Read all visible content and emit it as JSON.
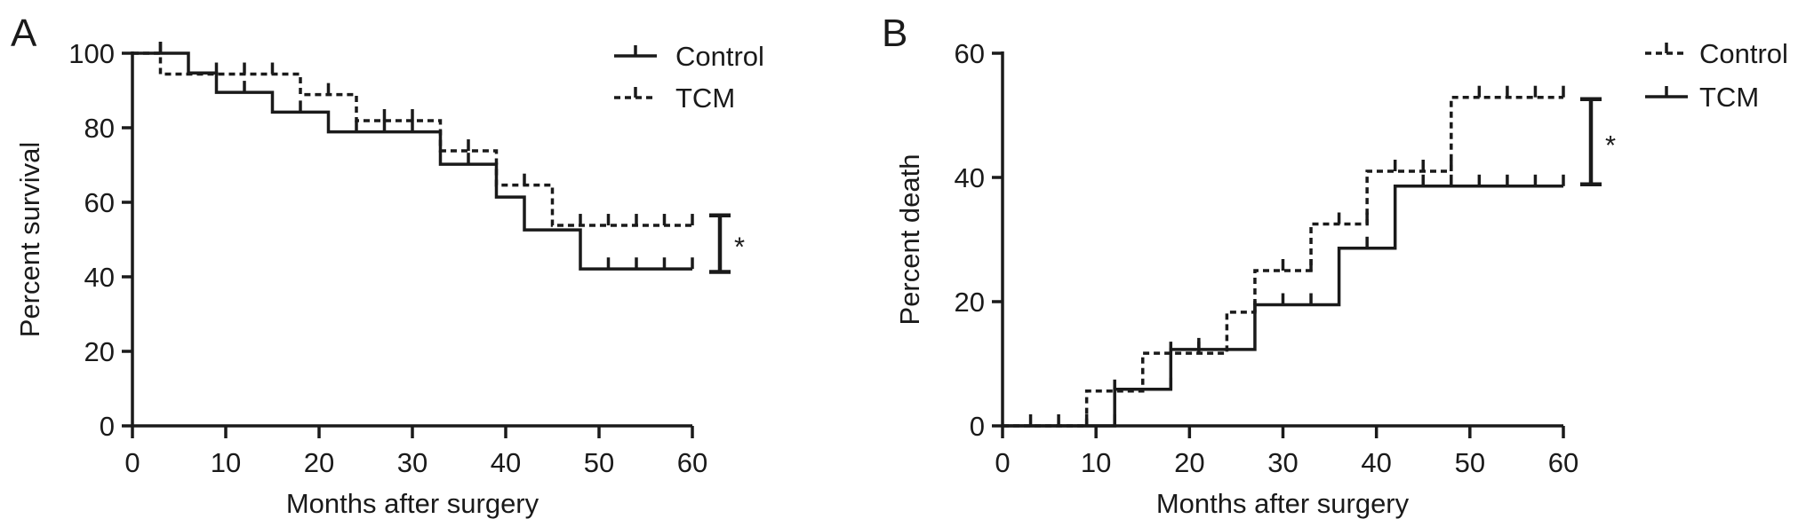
{
  "chart_data": [
    {
      "type": "line",
      "subtype": "kaplan-meier-step",
      "panel_label": "A",
      "title": "",
      "xlabel": "Months after surgery",
      "ylabel": "Percent survival",
      "xlim": [
        0,
        60
      ],
      "ylim": [
        0,
        100
      ],
      "xticks": [
        "0",
        "10",
        "20",
        "30",
        "40",
        "50",
        "60"
      ],
      "yticks": [
        "0",
        "20",
        "40",
        "60",
        "80",
        "100"
      ],
      "legend_position": "top-right",
      "series": [
        {
          "name": "Control",
          "style": "solid",
          "steps": [
            [
              0,
              100
            ],
            [
              6,
              94.7
            ],
            [
              9,
              89.5
            ],
            [
              15,
              84.2
            ],
            [
              21,
              78.9
            ],
            [
              33,
              70.2
            ],
            [
              39,
              61.4
            ],
            [
              42,
              52.6
            ],
            [
              48,
              42.1
            ],
            [
              60,
              42.1
            ]
          ],
          "censored": [
            3,
            12,
            18,
            24,
            27,
            30,
            36,
            51,
            54,
            57,
            60
          ]
        },
        {
          "name": "TCM",
          "style": "dashed",
          "steps": [
            [
              0,
              100
            ],
            [
              3,
              94.4
            ],
            [
              18,
              88.9
            ],
            [
              24,
              81.9
            ],
            [
              33,
              73.8
            ],
            [
              39,
              64.6
            ],
            [
              45,
              53.8
            ],
            [
              60,
              53.8
            ]
          ],
          "censored": [
            3,
            9,
            12,
            15,
            21,
            27,
            30,
            36,
            42,
            48,
            51,
            54,
            57,
            60
          ]
        }
      ],
      "significance": {
        "label": "*",
        "range": [
          41.3,
          56.5
        ]
      }
    },
    {
      "type": "line",
      "subtype": "cumulative-incidence-step",
      "panel_label": "B",
      "title": "",
      "xlabel": "Months after surgery",
      "ylabel": "Percent death",
      "xlim": [
        0,
        60
      ],
      "ylim": [
        0,
        60
      ],
      "xticks": [
        "0",
        "10",
        "20",
        "30",
        "40",
        "50",
        "60"
      ],
      "yticks": [
        "0",
        "20",
        "40",
        "60"
      ],
      "legend_position": "top-right",
      "series": [
        {
          "name": "Control",
          "style": "dashed",
          "steps": [
            [
              0,
              0
            ],
            [
              9,
              5.6
            ],
            [
              15,
              11.7
            ],
            [
              24,
              18.3
            ],
            [
              27,
              25
            ],
            [
              33,
              32.5
            ],
            [
              39,
              41
            ],
            [
              48,
              52.9
            ],
            [
              60,
              52.9
            ]
          ],
          "censored": [
            9,
            12,
            18,
            21,
            27,
            30,
            33,
            36,
            39,
            42,
            45,
            48,
            51,
            54,
            57,
            60
          ]
        },
        {
          "name": "TCM",
          "style": "solid",
          "steps": [
            [
              0,
              0
            ],
            [
              12,
              5.9
            ],
            [
              18,
              12.3
            ],
            [
              27,
              19.5
            ],
            [
              36,
              28.6
            ],
            [
              42,
              38.6
            ],
            [
              60,
              38.6
            ]
          ],
          "censored": [
            3,
            6,
            12,
            18,
            21,
            30,
            33,
            39,
            45,
            48,
            51,
            54,
            57,
            60
          ]
        }
      ],
      "significance": {
        "label": "*",
        "range": [
          38.9,
          52.6
        ]
      }
    }
  ]
}
